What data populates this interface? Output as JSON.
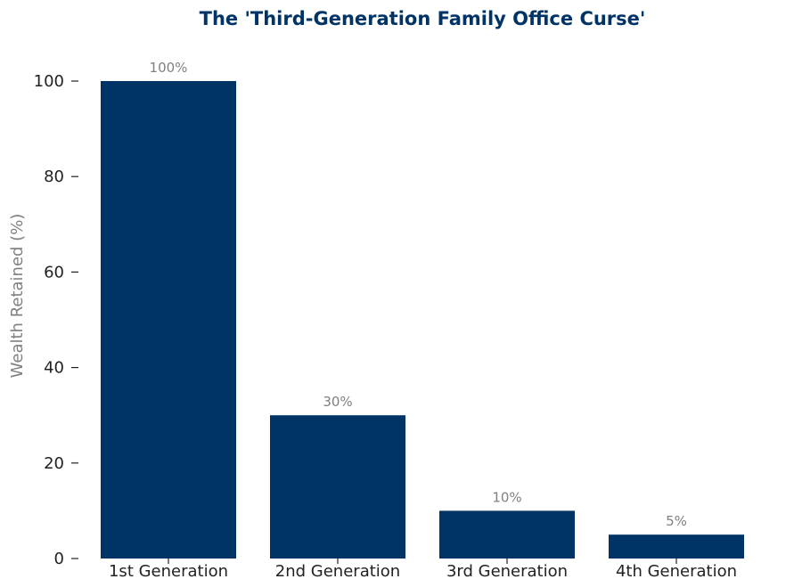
{
  "chart_data": {
    "type": "bar",
    "title": "The 'Third-Generation Family Office Curse'",
    "xlabel": "",
    "ylabel": "Wealth Retained (%)",
    "categories": [
      "1st Generation",
      "2nd Generation",
      "3rd Generation",
      "4th Generation"
    ],
    "values": [
      100,
      30,
      10,
      5
    ],
    "data_labels": [
      "100%",
      "30%",
      "10%",
      "5%"
    ],
    "ylim": [
      0,
      100
    ],
    "yticks": [
      0,
      20,
      40,
      60,
      80,
      100
    ],
    "grid": false,
    "colors": {
      "bar": "#003366",
      "title": "#003366",
      "ylabel": "#808080",
      "data_label": "#808080",
      "tick": "#222222"
    }
  }
}
